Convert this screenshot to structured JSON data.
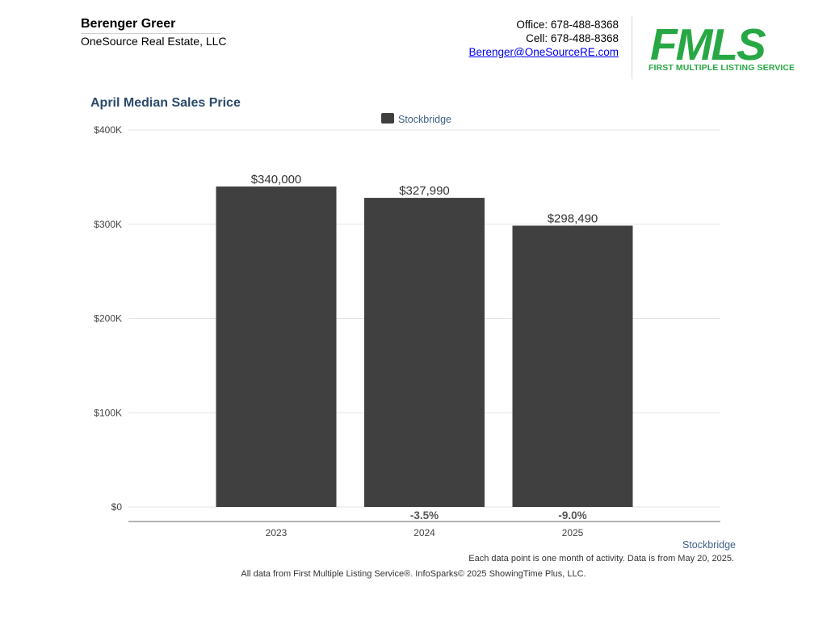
{
  "agent": {
    "name": "Berenger Greer",
    "company": "OneSource Real Estate, LLC"
  },
  "contact": {
    "office": "Office: 678-488-8368",
    "cell": "Cell: 678-488-8368",
    "email": "Berenger@OneSourceRE.com"
  },
  "logo": {
    "word": "FMLS",
    "subtitle": "FIRST MULTIPLE LISTING SERVICE",
    "color": "#27a844"
  },
  "chart_data": {
    "type": "bar",
    "title": "April Median Sales Price",
    "categories": [
      "2023",
      "2024",
      "2025"
    ],
    "series": [
      {
        "name": "Stockbridge",
        "values": [
          340000,
          327990,
          298490
        ],
        "value_labels": [
          "$340,000",
          "$327,990",
          "$298,490"
        ],
        "change_labels": [
          "",
          "-3.5%",
          "-9.0%"
        ],
        "color": "#404040"
      }
    ],
    "ylim": [
      0,
      400000
    ],
    "y_ticks": [
      0,
      100000,
      200000,
      300000,
      400000
    ],
    "y_tick_labels": [
      "$0",
      "$100K",
      "$200K",
      "$300K",
      "$400K"
    ],
    "grid": true,
    "legend_position": "top-center",
    "xlabel": "",
    "ylabel": ""
  },
  "footer": {
    "series_label": "Stockbridge",
    "note": "Each data point is one month of activity. Data is from May 20, 2025.",
    "credit": "All data from First Multiple Listing Service®. InfoSparks© 2025 ShowingTime Plus, LLC."
  }
}
